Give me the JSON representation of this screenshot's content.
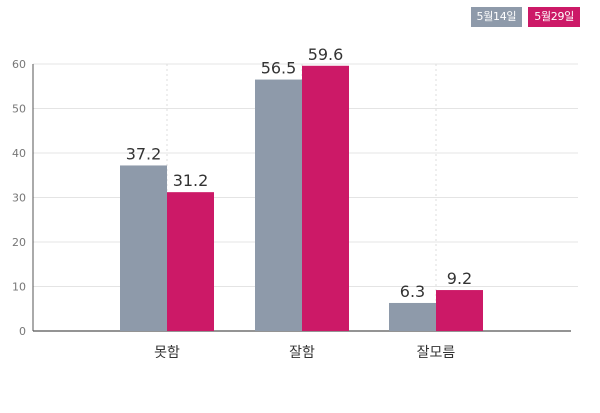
{
  "chart_data": {
    "type": "bar",
    "categories": [
      "못함",
      "잘함",
      "잘모름"
    ],
    "series": [
      {
        "name": "5월14일",
        "values": [
          37.2,
          56.5,
          6.3
        ],
        "color": "#8e9aaa"
      },
      {
        "name": "5월29일",
        "values": [
          31.2,
          59.6,
          9.2
        ],
        "color": "#cc1967"
      }
    ],
    "ylim": [
      0,
      60
    ],
    "yticks": [
      0,
      10,
      20,
      30,
      40,
      50,
      60
    ],
    "grid": true,
    "legend_position": "top-right",
    "title": "",
    "xlabel": "",
    "ylabel": ""
  }
}
